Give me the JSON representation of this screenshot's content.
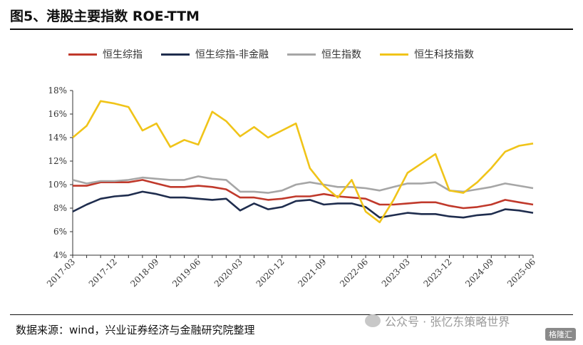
{
  "header": {
    "title": "图5、港股主要指数 ROE-TTM"
  },
  "footer": {
    "source": "数据来源：wind，兴业证券经济与金融研究院整理",
    "watermark": "公众号 · 张忆东策略世界",
    "brand": "格隆汇"
  },
  "chart_data": {
    "type": "line",
    "x": [
      "2017-03",
      "2017-06",
      "2017-09",
      "2017-12",
      "2018-03",
      "2018-06",
      "2018-09",
      "2018-12",
      "2019-03",
      "2019-06",
      "2019-09",
      "2019-12",
      "2020-03",
      "2020-06",
      "2020-09",
      "2020-12",
      "2021-03",
      "2021-06",
      "2021-09",
      "2021-12",
      "2022-03",
      "2022-06",
      "2022-09",
      "2022-12",
      "2023-03",
      "2023-06",
      "2023-09",
      "2023-12",
      "2024-03",
      "2024-06",
      "2024-09",
      "2024-12",
      "2025-03",
      "2025-06"
    ],
    "x_tick_labels": [
      "2017-03",
      "2017-12",
      "2018-09",
      "2019-06",
      "2020-03",
      "2020-12",
      "2021-09",
      "2022-06",
      "2023-03",
      "2023-12",
      "2024-09",
      "2025-06"
    ],
    "y_ticks": [
      "4%",
      "6%",
      "8%",
      "10%",
      "12%",
      "14%",
      "16%",
      "18%"
    ],
    "ylim": [
      4,
      18
    ],
    "grid": false,
    "legend_position": "top",
    "series": [
      {
        "name": "恒生综指",
        "color": "#c0392b",
        "values": [
          9.9,
          9.9,
          10.2,
          10.2,
          10.2,
          10.4,
          10.1,
          9.8,
          9.8,
          9.9,
          9.8,
          9.6,
          8.9,
          8.9,
          8.7,
          8.8,
          9.0,
          9.0,
          9.2,
          9.0,
          8.9,
          8.8,
          8.3,
          8.3,
          8.4,
          8.5,
          8.5,
          8.2,
          8.0,
          8.1,
          8.3,
          8.7,
          8.5,
          8.3
        ]
      },
      {
        "name": "恒生综指-非金融",
        "color": "#1f2d4e",
        "values": [
          7.7,
          8.3,
          8.8,
          9.0,
          9.1,
          9.4,
          9.2,
          8.9,
          8.9,
          8.8,
          8.7,
          8.8,
          7.8,
          8.4,
          7.9,
          8.1,
          8.6,
          8.7,
          8.3,
          8.4,
          8.4,
          8.1,
          7.2,
          7.4,
          7.6,
          7.5,
          7.5,
          7.3,
          7.2,
          7.4,
          7.5,
          7.9,
          7.8,
          7.6
        ]
      },
      {
        "name": "恒生指数",
        "color": "#a6a6a6",
        "values": [
          10.4,
          10.1,
          10.3,
          10.3,
          10.4,
          10.6,
          10.5,
          10.4,
          10.4,
          10.7,
          10.5,
          10.4,
          9.4,
          9.4,
          9.3,
          9.5,
          10.0,
          10.2,
          10.0,
          9.8,
          9.8,
          9.7,
          9.5,
          9.8,
          10.1,
          10.1,
          10.2,
          9.5,
          9.4,
          9.6,
          9.8,
          10.1,
          9.9,
          9.7
        ]
      },
      {
        "name": "恒生科技指数",
        "color": "#f0c419",
        "values": [
          14.0,
          15.0,
          17.1,
          16.9,
          16.6,
          14.6,
          15.2,
          13.2,
          13.8,
          13.4,
          16.2,
          15.4,
          14.1,
          14.9,
          14.0,
          14.6,
          15.2,
          11.4,
          9.9,
          8.9,
          10.4,
          7.7,
          6.8,
          8.7,
          11.0,
          11.8,
          12.6,
          9.5,
          9.3,
          10.2,
          11.4,
          12.8,
          13.3,
          13.5
        ]
      }
    ]
  }
}
